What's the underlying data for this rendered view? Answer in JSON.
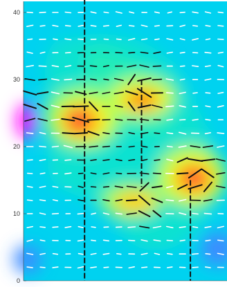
{
  "chart_data": {
    "type": "heatmap",
    "title": "",
    "xlabel": "",
    "ylabel": "",
    "ylim": [
      0,
      42
    ],
    "xlim": [
      0,
      1
    ],
    "yticks": [
      {
        "value": 0,
        "label": "0"
      },
      {
        "value": 10,
        "label": "10"
      },
      {
        "value": 20,
        "label": "20"
      },
      {
        "value": 30,
        "label": "30"
      },
      {
        "value": 40,
        "label": "40"
      }
    ],
    "colormap": [
      "#00d2f0",
      "#00ffb0",
      "#ffff00",
      "#ff5a00",
      "#ff2a4a",
      "#ff10ff"
    ],
    "intensity_peaks": [
      {
        "x": 0.28,
        "y": 24.5,
        "value": 0.95
      },
      {
        "x": 0.58,
        "y": 28.0,
        "value": 0.9
      },
      {
        "x": 0.86,
        "y": 16.0,
        "value": 1.0
      },
      {
        "x": 0.6,
        "y": 12.0,
        "value": 0.8
      },
      {
        "x": 0.04,
        "y": 27.0,
        "value": 0.7
      }
    ],
    "grid": false
  }
}
